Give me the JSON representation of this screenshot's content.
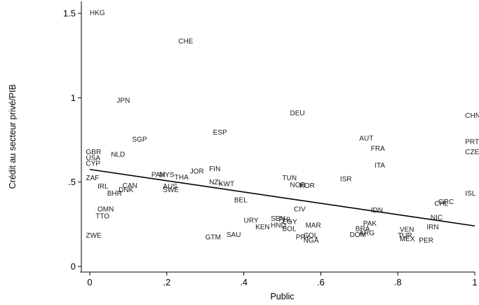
{
  "chart_data": {
    "type": "scatter",
    "xlabel": "Public",
    "ylabel": "Crédit au secteur privé/PIB",
    "xlim": [
      -0.025,
      1.0
    ],
    "ylim": [
      -0.03,
      1.57
    ],
    "x_ticks": [
      {
        "value": 0,
        "label": "0"
      },
      {
        "value": 0.2,
        "label": ".2"
      },
      {
        "value": 0.4,
        "label": ".4"
      },
      {
        "value": 0.6,
        "label": ".6"
      },
      {
        "value": 0.8,
        "label": ".8"
      },
      {
        "value": 1,
        "label": "1"
      }
    ],
    "y_ticks": [
      {
        "value": 0,
        "label": "0"
      },
      {
        "value": 0.5,
        "label": ".5"
      },
      {
        "value": 1,
        "label": "1"
      },
      {
        "value": 1.5,
        "label": "1.5"
      }
    ],
    "fit_line": {
      "x": [
        0,
        1
      ],
      "y": [
        0.575,
        0.24
      ]
    },
    "points": [
      {
        "label": "HKG",
        "x": 0.0,
        "y": 1.505
      },
      {
        "label": "CHE",
        "x": 0.23,
        "y": 1.335
      },
      {
        "label": "JPN",
        "x": 0.07,
        "y": 0.985
      },
      {
        "label": "DEU",
        "x": 0.52,
        "y": 0.91
      },
      {
        "label": "CHN",
        "x": 0.975,
        "y": 0.895
      },
      {
        "label": "ESP",
        "x": 0.32,
        "y": 0.795
      },
      {
        "label": "SGP",
        "x": 0.11,
        "y": 0.755
      },
      {
        "label": "AUT",
        "x": 0.7,
        "y": 0.76
      },
      {
        "label": "PRT",
        "x": 0.975,
        "y": 0.74
      },
      {
        "label": "FRA",
        "x": 0.73,
        "y": 0.7
      },
      {
        "label": "CZE",
        "x": 0.975,
        "y": 0.68
      },
      {
        "label": "GBR",
        "x": -0.01,
        "y": 0.68
      },
      {
        "label": "NLD",
        "x": 0.055,
        "y": 0.665
      },
      {
        "label": "USA",
        "x": -0.01,
        "y": 0.645
      },
      {
        "label": "CYP",
        "x": -0.01,
        "y": 0.61
      },
      {
        "label": "ITA",
        "x": 0.74,
        "y": 0.6
      },
      {
        "label": "FIN",
        "x": 0.31,
        "y": 0.58
      },
      {
        "label": "JOR",
        "x": 0.26,
        "y": 0.565
      },
      {
        "label": "PAN",
        "x": 0.16,
        "y": 0.545
      },
      {
        "label": "MYS",
        "x": 0.18,
        "y": 0.545
      },
      {
        "label": "THA",
        "x": 0.22,
        "y": 0.53
      },
      {
        "label": "TUN",
        "x": 0.5,
        "y": 0.525
      },
      {
        "label": "ISR",
        "x": 0.65,
        "y": 0.52
      },
      {
        "label": "ZAF",
        "x": -0.01,
        "y": 0.525
      },
      {
        "label": "NZL",
        "x": 0.31,
        "y": 0.5
      },
      {
        "label": "KWT",
        "x": 0.335,
        "y": 0.49
      },
      {
        "label": "NOR",
        "x": 0.52,
        "y": 0.485
      },
      {
        "label": "KOR",
        "x": 0.545,
        "y": 0.48
      },
      {
        "label": "IRL",
        "x": 0.02,
        "y": 0.475
      },
      {
        "label": "CAN",
        "x": 0.085,
        "y": 0.48
      },
      {
        "label": "AUS",
        "x": 0.19,
        "y": 0.475
      },
      {
        "label": "DNK",
        "x": 0.075,
        "y": 0.455
      },
      {
        "label": "SWE",
        "x": 0.19,
        "y": 0.455
      },
      {
        "label": "BHR",
        "x": 0.045,
        "y": 0.435
      },
      {
        "label": "ISL",
        "x": 0.975,
        "y": 0.435
      },
      {
        "label": "BEL",
        "x": 0.375,
        "y": 0.395
      },
      {
        "label": "GRC",
        "x": 0.905,
        "y": 0.385
      },
      {
        "label": "CHL",
        "x": 0.895,
        "y": 0.375
      },
      {
        "label": "OMN",
        "x": 0.02,
        "y": 0.34
      },
      {
        "label": "CIV",
        "x": 0.53,
        "y": 0.34
      },
      {
        "label": "IDN",
        "x": 0.73,
        "y": 0.335
      },
      {
        "label": "TTO",
        "x": 0.015,
        "y": 0.3
      },
      {
        "label": "NIC",
        "x": 0.885,
        "y": 0.29
      },
      {
        "label": "SEN",
        "x": 0.47,
        "y": 0.285
      },
      {
        "label": "PHL",
        "x": 0.49,
        "y": 0.28
      },
      {
        "label": "URY",
        "x": 0.4,
        "y": 0.275
      },
      {
        "label": "EGY",
        "x": 0.5,
        "y": 0.265
      },
      {
        "label": "PAK",
        "x": 0.71,
        "y": 0.255
      },
      {
        "label": "HND",
        "x": 0.47,
        "y": 0.245
      },
      {
        "label": "MAR",
        "x": 0.56,
        "y": 0.245
      },
      {
        "label": "IRN",
        "x": 0.875,
        "y": 0.235
      },
      {
        "label": "KEN",
        "x": 0.43,
        "y": 0.235
      },
      {
        "label": "BOL",
        "x": 0.5,
        "y": 0.225
      },
      {
        "label": "BRA",
        "x": 0.69,
        "y": 0.225
      },
      {
        "label": "VEN",
        "x": 0.805,
        "y": 0.22
      },
      {
        "label": "ARG",
        "x": 0.7,
        "y": 0.2
      },
      {
        "label": "DOM",
        "x": 0.675,
        "y": 0.19
      },
      {
        "label": "ZWE",
        "x": -0.01,
        "y": 0.185
      },
      {
        "label": "SAU",
        "x": 0.355,
        "y": 0.19
      },
      {
        "label": "COL",
        "x": 0.555,
        "y": 0.185
      },
      {
        "label": "TUR",
        "x": 0.8,
        "y": 0.185
      },
      {
        "label": "GTM",
        "x": 0.3,
        "y": 0.175
      },
      {
        "label": "PRY",
        "x": 0.535,
        "y": 0.175
      },
      {
        "label": "MEX",
        "x": 0.805,
        "y": 0.165
      },
      {
        "label": "NGA",
        "x": 0.555,
        "y": 0.155
      },
      {
        "label": "PER",
        "x": 0.855,
        "y": 0.155
      }
    ]
  }
}
